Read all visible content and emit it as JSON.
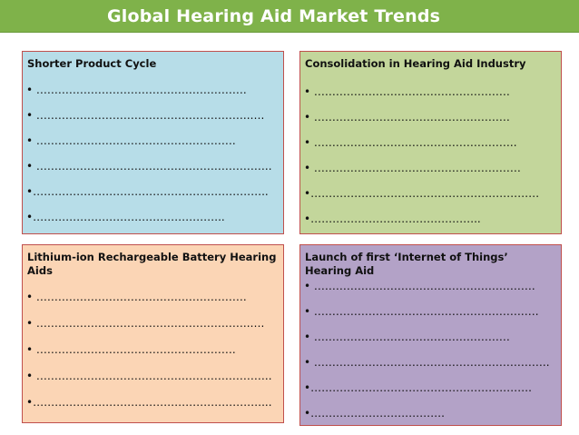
{
  "header": {
    "title": "Global Hearing Aid Market Trends"
  },
  "colors": {
    "banner": "#7fb24a",
    "border": "#c0504d",
    "panel_blue": "#b7dde8",
    "panel_green": "#c3d69b",
    "panel_peach": "#fbd5b5",
    "panel_purple": "#b3a2c7"
  },
  "panels": [
    {
      "title": "Shorter Product Cycle",
      "bullets": [
        "•   ………………………………………………….",
        "•  …………………………………………………..….",
        "•  ……………………………………………….",
        "•  ………………………………………………………..",
        "•………………………………………………………..",
        "•…………………………………………….."
      ]
    },
    {
      "title": "Consolidation in Hearing Aid Industry",
      "bullets": [
        "•   ………………………………………………",
        "•  ………………………………………………",
        "•  ………………………………………………..",
        "•  …………………………………………………",
        "•………………………………………………………",
        "•……………………………………….."
      ]
    },
    {
      "title": "Lithium-ion Rechargeable Battery Hearing Aids",
      "bullets": [
        "•   ………………………………………………….",
        "•  …………………………………………………..….",
        "•  ……………………………………………….",
        "•  ………………………………………………………..",
        "•………………………………………………………..."
      ]
    },
    {
      "title": "Launch of first ‘Internet of Things’ Hearing Aid",
      "bullets": [
        "•   …………………………………………………….",
        "•  ………………………………………………….….",
        "•  ………………………………………………",
        "•  ………………………………………………………..",
        "•…………………………………………………….",
        "•………………………………."
      ]
    }
  ]
}
